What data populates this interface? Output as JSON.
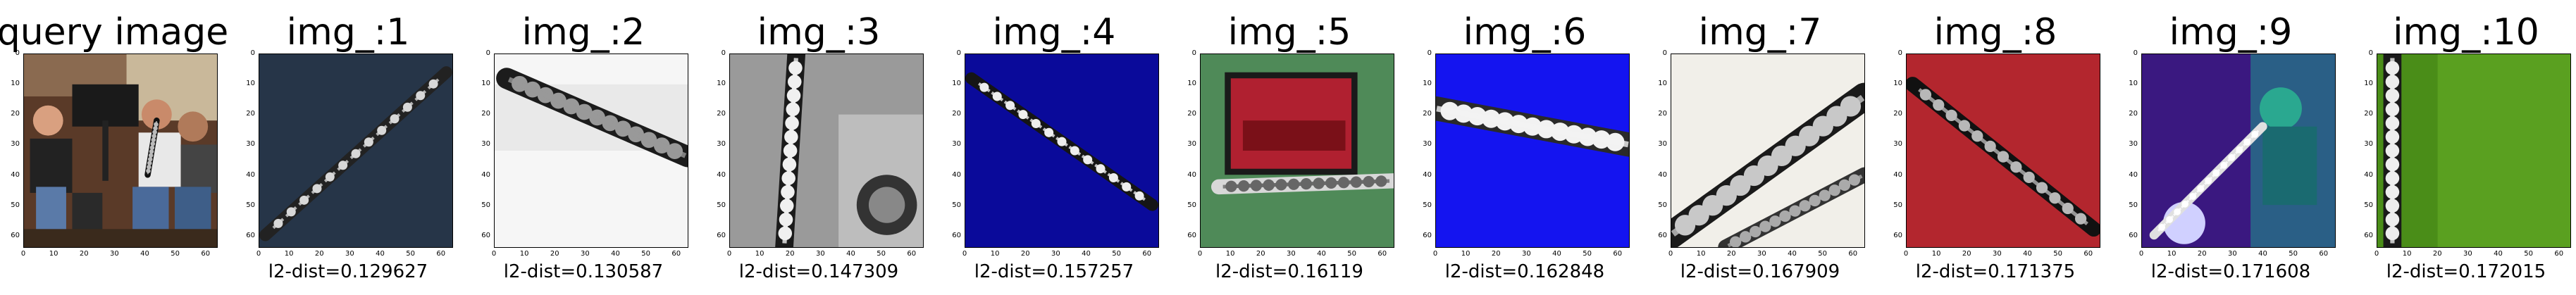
{
  "query": {
    "title": "query image"
  },
  "results": [
    {
      "title": "img_:1",
      "distance_label": "l2-dist=0.129627",
      "distance": 0.129627,
      "scene": "dark-navy-diagonal-clarinet"
    },
    {
      "title": "img_:2",
      "distance_label": "l2-dist=0.130587",
      "distance": 0.130587,
      "scene": "white-blurred-clarinet"
    },
    {
      "title": "img_:3",
      "distance_label": "l2-dist=0.147309",
      "distance": 0.147309,
      "scene": "gray-vertical-clarinet"
    },
    {
      "title": "img_:4",
      "distance_label": "l2-dist=0.157257",
      "distance": 0.157257,
      "scene": "blue-diagonal-clarinet"
    },
    {
      "title": "img_:5",
      "distance_label": "l2-dist=0.16119",
      "distance": 0.16119,
      "scene": "green-red-case-clarinet"
    },
    {
      "title": "img_:6",
      "distance_label": "l2-dist=0.162848",
      "distance": 0.162848,
      "scene": "bright-blue-clarinet"
    },
    {
      "title": "img_:7",
      "distance_label": "l2-dist=0.167909",
      "distance": 0.167909,
      "scene": "white-closeup-clarinet"
    },
    {
      "title": "img_:8",
      "distance_label": "l2-dist=0.171375",
      "distance": 0.171375,
      "scene": "red-diagonal-clarinet"
    },
    {
      "title": "img_:9",
      "distance_label": "l2-dist=0.171608",
      "distance": 0.171608,
      "scene": "purple-player-clarinet"
    },
    {
      "title": "img_:10",
      "distance_label": "l2-dist=0.172015",
      "distance": 0.172015,
      "scene": "green-vertical-clarinet"
    }
  ],
  "axis_ticks": [
    "0",
    "10",
    "20",
    "30",
    "40",
    "50",
    "60"
  ]
}
